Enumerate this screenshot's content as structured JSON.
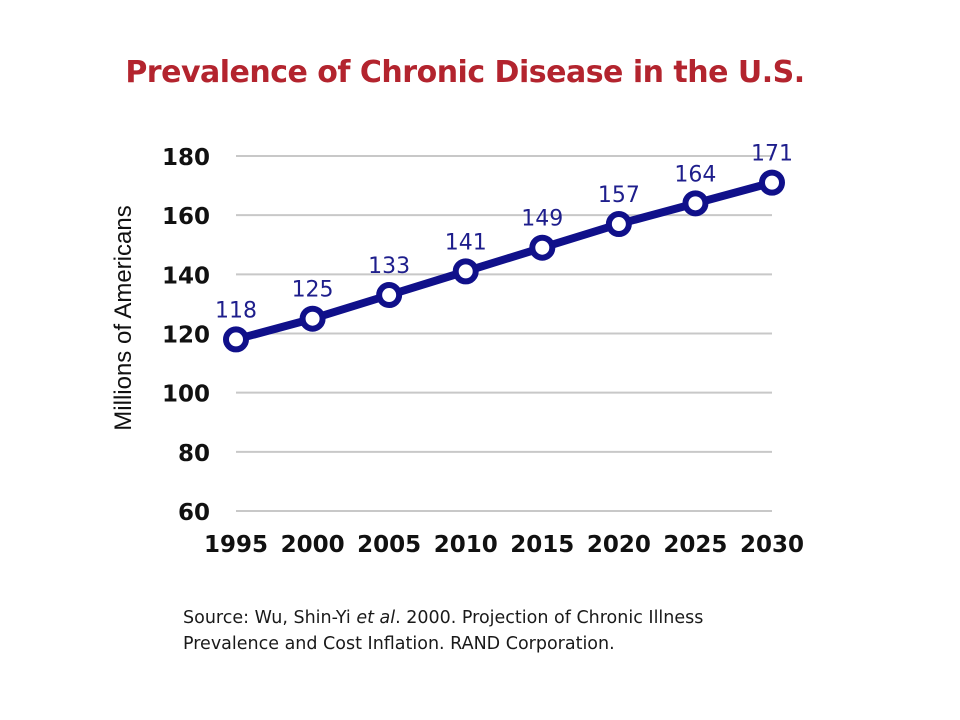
{
  "chart_data": {
    "type": "line",
    "title": "Prevalence of Chronic Disease in the U.S.",
    "xlabel": "",
    "ylabel": "Millions of Americans",
    "categories": [
      "1995",
      "2000",
      "2005",
      "2010",
      "2015",
      "2020",
      "2025",
      "2030"
    ],
    "series": [
      {
        "values": [
          118,
          125,
          133,
          141,
          149,
          157,
          164,
          171
        ]
      }
    ],
    "data_labels": [
      "118",
      "125",
      "133",
      "141",
      "149",
      "157",
      "164",
      "171"
    ],
    "ylim": [
      60,
      180
    ],
    "yticks": [
      "60",
      "80",
      "100",
      "120",
      "140",
      "160",
      "180"
    ],
    "grid": true,
    "legend": "none",
    "colors": {
      "line": "#10108a",
      "label": "#1e1e8c",
      "grid": "#c8c8c8",
      "title": "#b3242e"
    }
  },
  "source": {
    "line1_prefix": "Source:  Wu, Shin-Yi ",
    "line1_italic": "et al",
    "line1_suffix": ". 2000.  Projection of Chronic Illness",
    "line2": "Prevalence and Cost Inflation.  RAND Corporation."
  }
}
